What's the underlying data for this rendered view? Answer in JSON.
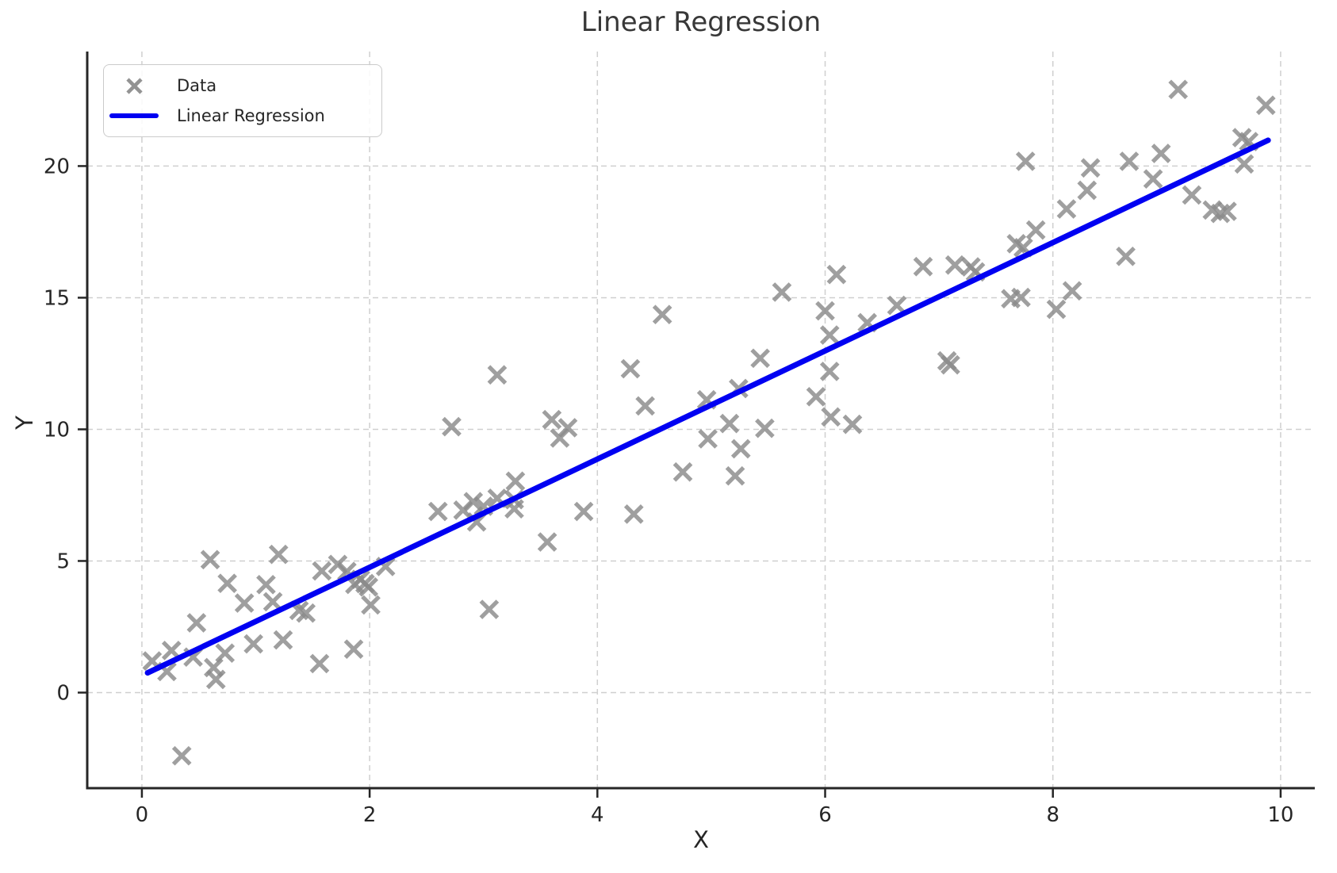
{
  "title": "Linear Regression",
  "axes": {
    "xlabel": "X",
    "ylabel": "Y",
    "x_ticks": [
      0,
      2,
      4,
      6,
      8,
      10
    ],
    "y_ticks": [
      0,
      5,
      10,
      15,
      20
    ],
    "xlim": [
      -0.48,
      10.3
    ],
    "ylim": [
      -3.63,
      24.35
    ],
    "grid": true
  },
  "legend": {
    "position": "upper left",
    "items": [
      {
        "label": "Data",
        "type": "marker"
      },
      {
        "label": "Linear Regression",
        "type": "line"
      }
    ]
  },
  "colors": {
    "marker": "#8a8a8a",
    "line": "#0000f2",
    "grid": "#cfcfcf",
    "spine": "#262626",
    "tick_text": "#262626",
    "title_text": "#383838",
    "legend_border": "#cbcbcb"
  },
  "chart_data": {
    "type": "scatter",
    "title": "Linear Regression",
    "xlabel": "X",
    "ylabel": "Y",
    "xlim": [
      -0.48,
      10.3
    ],
    "ylim": [
      -3.63,
      24.35
    ],
    "x_ticks": [
      0,
      2,
      4,
      6,
      8,
      10
    ],
    "y_ticks": [
      0,
      5,
      10,
      15,
      20
    ],
    "grid": true,
    "legend_position": "upper left",
    "series": [
      {
        "name": "Data",
        "type": "scatter",
        "marker": "x",
        "color": "#8a8a8a",
        "points": [
          [
            0.09,
            1.2
          ],
          [
            0.22,
            0.8
          ],
          [
            0.26,
            1.6
          ],
          [
            0.35,
            -2.4
          ],
          [
            0.45,
            1.35
          ],
          [
            0.48,
            2.65
          ],
          [
            0.6,
            5.05
          ],
          [
            0.63,
            0.95
          ],
          [
            0.65,
            0.5
          ],
          [
            0.73,
            1.5
          ],
          [
            0.75,
            4.15
          ],
          [
            0.9,
            3.4
          ],
          [
            0.98,
            1.85
          ],
          [
            1.09,
            4.1
          ],
          [
            1.15,
            3.45
          ],
          [
            1.2,
            5.25
          ],
          [
            1.24,
            2.0
          ],
          [
            1.38,
            3.12
          ],
          [
            1.44,
            3.02
          ],
          [
            1.56,
            1.1
          ],
          [
            1.58,
            4.62
          ],
          [
            1.72,
            4.87
          ],
          [
            1.8,
            4.6
          ],
          [
            1.86,
            1.65
          ],
          [
            1.87,
            4.11
          ],
          [
            1.92,
            4.3
          ],
          [
            1.96,
            4.14
          ],
          [
            1.99,
            4.01
          ],
          [
            2.01,
            3.33
          ],
          [
            2.14,
            4.79
          ],
          [
            2.6,
            6.88
          ],
          [
            2.72,
            10.1
          ],
          [
            2.82,
            6.93
          ],
          [
            2.91,
            7.25
          ],
          [
            2.94,
            6.48
          ],
          [
            3.0,
            7.08
          ],
          [
            3.05,
            3.16
          ],
          [
            3.12,
            7.38
          ],
          [
            3.12,
            12.07
          ],
          [
            3.27,
            7.33
          ],
          [
            3.27,
            6.98
          ],
          [
            3.28,
            8.03
          ],
          [
            3.56,
            5.72
          ],
          [
            3.6,
            10.37
          ],
          [
            3.67,
            9.67
          ],
          [
            3.74,
            10.06
          ],
          [
            3.88,
            6.88
          ],
          [
            4.29,
            12.3
          ],
          [
            4.32,
            6.78
          ],
          [
            4.42,
            10.89
          ],
          [
            4.57,
            14.36
          ],
          [
            4.75,
            8.38
          ],
          [
            4.96,
            11.12
          ],
          [
            4.97,
            9.64
          ],
          [
            5.16,
            10.22
          ],
          [
            5.21,
            8.23
          ],
          [
            5.24,
            11.55
          ],
          [
            5.26,
            9.26
          ],
          [
            5.43,
            12.7
          ],
          [
            5.47,
            10.04
          ],
          [
            5.62,
            15.21
          ],
          [
            5.92,
            11.24
          ],
          [
            6.0,
            14.5
          ],
          [
            6.04,
            12.2
          ],
          [
            6.04,
            13.58
          ],
          [
            6.05,
            10.47
          ],
          [
            6.1,
            15.88
          ],
          [
            6.24,
            10.19
          ],
          [
            6.37,
            14.05
          ],
          [
            6.63,
            14.71
          ],
          [
            6.86,
            16.18
          ],
          [
            7.07,
            12.6
          ],
          [
            7.1,
            12.45
          ],
          [
            7.14,
            16.24
          ],
          [
            7.28,
            16.17
          ],
          [
            7.32,
            15.98
          ],
          [
            7.63,
            14.96
          ],
          [
            7.68,
            17.05
          ],
          [
            7.72,
            15.01
          ],
          [
            7.74,
            16.9
          ],
          [
            7.76,
            20.18
          ],
          [
            7.85,
            17.57
          ],
          [
            8.03,
            14.56
          ],
          [
            8.12,
            18.37
          ],
          [
            8.17,
            15.26
          ],
          [
            8.3,
            19.08
          ],
          [
            8.33,
            19.93
          ],
          [
            8.64,
            16.57
          ],
          [
            8.67,
            20.18
          ],
          [
            8.88,
            19.51
          ],
          [
            8.95,
            20.48
          ],
          [
            9.1,
            22.91
          ],
          [
            9.22,
            18.9
          ],
          [
            9.4,
            18.33
          ],
          [
            9.47,
            18.2
          ],
          [
            9.53,
            18.28
          ],
          [
            9.66,
            21.08
          ],
          [
            9.68,
            20.08
          ],
          [
            9.72,
            20.93
          ],
          [
            9.87,
            22.31
          ]
        ]
      },
      {
        "name": "Linear Regression",
        "type": "line",
        "color": "#0000f2",
        "x": [
          0.05,
          9.89
        ],
        "y": [
          0.75,
          20.98
        ]
      }
    ]
  }
}
